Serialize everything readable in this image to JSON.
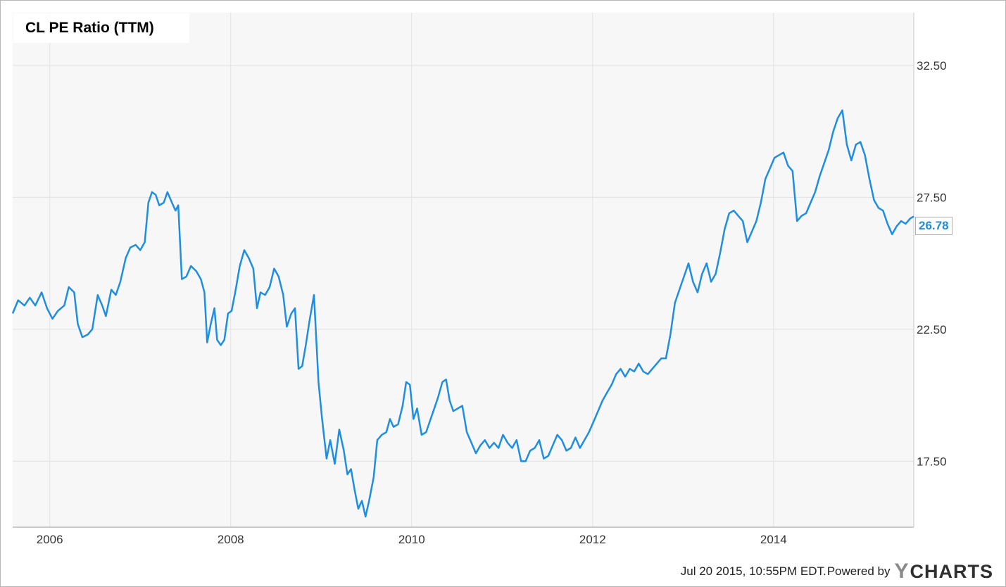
{
  "title": "CL PE Ratio (TTM)",
  "last_value_label": "26.78",
  "footer": {
    "timestamp": "Jul 20 2015, 10:55PM EDT.",
    "powered_by": "Powered by",
    "logo_y": "Y",
    "logo_rest": "CHARTS"
  },
  "colors": {
    "line": "#1f8ee0",
    "plot_background": "#f7f7f7",
    "grid": "#e2e2e2",
    "badge_text": "#1f8ee0"
  },
  "chart_data": {
    "type": "line",
    "title": "CL PE Ratio (TTM)",
    "xlabel": "",
    "ylabel": "",
    "x_range": [
      2005.59,
      2015.55
    ],
    "ylim": [
      15.0,
      34.5
    ],
    "grid": true,
    "y_axis_side": "right",
    "y_ticks": [
      "17.50",
      "22.50",
      "27.50",
      "32.50"
    ],
    "x_ticks": [
      "2006",
      "2008",
      "2010",
      "2012",
      "2014"
    ],
    "last_value": 26.78,
    "series": [
      {
        "name": "CL PE Ratio (TTM)",
        "points": [
          [
            2005.59,
            23.1
          ],
          [
            2005.65,
            23.6
          ],
          [
            2005.72,
            23.4
          ],
          [
            2005.78,
            23.7
          ],
          [
            2005.84,
            23.4
          ],
          [
            2005.91,
            23.9
          ],
          [
            2005.97,
            23.3
          ],
          [
            2006.03,
            22.9
          ],
          [
            2006.09,
            23.2
          ],
          [
            2006.16,
            23.4
          ],
          [
            2006.21,
            24.1
          ],
          [
            2006.27,
            23.9
          ],
          [
            2006.31,
            22.7
          ],
          [
            2006.36,
            22.2
          ],
          [
            2006.42,
            22.3
          ],
          [
            2006.47,
            22.5
          ],
          [
            2006.53,
            23.8
          ],
          [
            2006.58,
            23.4
          ],
          [
            2006.62,
            23.0
          ],
          [
            2006.68,
            24.0
          ],
          [
            2006.73,
            23.8
          ],
          [
            2006.78,
            24.3
          ],
          [
            2006.84,
            25.2
          ],
          [
            2006.89,
            25.6
          ],
          [
            2006.95,
            25.7
          ],
          [
            2007.0,
            25.5
          ],
          [
            2007.05,
            25.8
          ],
          [
            2007.09,
            27.3
          ],
          [
            2007.13,
            27.7
          ],
          [
            2007.17,
            27.6
          ],
          [
            2007.21,
            27.2
          ],
          [
            2007.26,
            27.3
          ],
          [
            2007.3,
            27.7
          ],
          [
            2007.35,
            27.3
          ],
          [
            2007.39,
            27.0
          ],
          [
            2007.42,
            27.2
          ],
          [
            2007.46,
            24.4
          ],
          [
            2007.51,
            24.5
          ],
          [
            2007.56,
            24.9
          ],
          [
            2007.62,
            24.7
          ],
          [
            2007.67,
            24.4
          ],
          [
            2007.71,
            23.9
          ],
          [
            2007.74,
            22.0
          ],
          [
            2007.78,
            22.7
          ],
          [
            2007.82,
            23.3
          ],
          [
            2007.85,
            22.1
          ],
          [
            2007.89,
            21.9
          ],
          [
            2007.93,
            22.1
          ],
          [
            2007.97,
            23.1
          ],
          [
            2008.01,
            23.2
          ],
          [
            2008.05,
            23.9
          ],
          [
            2008.1,
            24.9
          ],
          [
            2008.15,
            25.5
          ],
          [
            2008.2,
            25.2
          ],
          [
            2008.25,
            24.8
          ],
          [
            2008.29,
            23.3
          ],
          [
            2008.33,
            23.9
          ],
          [
            2008.38,
            23.8
          ],
          [
            2008.43,
            24.1
          ],
          [
            2008.48,
            24.8
          ],
          [
            2008.53,
            24.5
          ],
          [
            2008.58,
            23.8
          ],
          [
            2008.62,
            22.6
          ],
          [
            2008.67,
            23.1
          ],
          [
            2008.71,
            23.3
          ],
          [
            2008.75,
            21.0
          ],
          [
            2008.79,
            21.1
          ],
          [
            2008.83,
            21.9
          ],
          [
            2008.87,
            22.8
          ],
          [
            2008.92,
            23.8
          ],
          [
            2008.97,
            20.5
          ],
          [
            2009.01,
            19.1
          ],
          [
            2009.06,
            17.6
          ],
          [
            2009.1,
            18.3
          ],
          [
            2009.15,
            17.4
          ],
          [
            2009.2,
            18.7
          ],
          [
            2009.25,
            17.9
          ],
          [
            2009.29,
            17.0
          ],
          [
            2009.33,
            17.2
          ],
          [
            2009.37,
            16.4
          ],
          [
            2009.41,
            15.7
          ],
          [
            2009.45,
            16.0
          ],
          [
            2009.49,
            15.4
          ],
          [
            2009.53,
            16.0
          ],
          [
            2009.58,
            16.9
          ],
          [
            2009.62,
            18.3
          ],
          [
            2009.67,
            18.5
          ],
          [
            2009.72,
            18.6
          ],
          [
            2009.76,
            19.1
          ],
          [
            2009.8,
            18.8
          ],
          [
            2009.85,
            18.9
          ],
          [
            2009.9,
            19.6
          ],
          [
            2009.94,
            20.5
          ],
          [
            2009.98,
            20.4
          ],
          [
            2010.02,
            19.1
          ],
          [
            2010.06,
            19.5
          ],
          [
            2010.11,
            18.5
          ],
          [
            2010.16,
            18.6
          ],
          [
            2010.2,
            19.0
          ],
          [
            2010.25,
            19.5
          ],
          [
            2010.29,
            19.9
          ],
          [
            2010.34,
            20.5
          ],
          [
            2010.38,
            20.6
          ],
          [
            2010.42,
            19.8
          ],
          [
            2010.46,
            19.4
          ],
          [
            2010.51,
            19.5
          ],
          [
            2010.56,
            19.6
          ],
          [
            2010.61,
            18.6
          ],
          [
            2010.66,
            18.2
          ],
          [
            2010.71,
            17.8
          ],
          [
            2010.76,
            18.1
          ],
          [
            2010.81,
            18.3
          ],
          [
            2010.86,
            18.0
          ],
          [
            2010.91,
            18.2
          ],
          [
            2010.96,
            18.0
          ],
          [
            2011.01,
            18.5
          ],
          [
            2011.06,
            18.2
          ],
          [
            2011.11,
            18.0
          ],
          [
            2011.16,
            18.3
          ],
          [
            2011.21,
            17.5
          ],
          [
            2011.26,
            17.5
          ],
          [
            2011.31,
            17.9
          ],
          [
            2011.36,
            18.0
          ],
          [
            2011.41,
            18.3
          ],
          [
            2011.46,
            17.6
          ],
          [
            2011.51,
            17.7
          ],
          [
            2011.56,
            18.1
          ],
          [
            2011.61,
            18.5
          ],
          [
            2011.66,
            18.3
          ],
          [
            2011.71,
            17.9
          ],
          [
            2011.76,
            18.0
          ],
          [
            2011.81,
            18.4
          ],
          [
            2011.86,
            18.0
          ],
          [
            2011.91,
            18.3
          ],
          [
            2011.96,
            18.6
          ],
          [
            2012.01,
            19.0
          ],
          [
            2012.06,
            19.4
          ],
          [
            2012.11,
            19.8
          ],
          [
            2012.16,
            20.1
          ],
          [
            2012.21,
            20.4
          ],
          [
            2012.26,
            20.8
          ],
          [
            2012.31,
            21.0
          ],
          [
            2012.36,
            20.7
          ],
          [
            2012.41,
            21.0
          ],
          [
            2012.46,
            20.9
          ],
          [
            2012.51,
            21.2
          ],
          [
            2012.56,
            20.9
          ],
          [
            2012.61,
            20.8
          ],
          [
            2012.66,
            21.0
          ],
          [
            2012.71,
            21.2
          ],
          [
            2012.76,
            21.4
          ],
          [
            2012.81,
            21.4
          ],
          [
            2012.86,
            22.3
          ],
          [
            2012.91,
            23.5
          ],
          [
            2012.96,
            24.0
          ],
          [
            2013.01,
            24.5
          ],
          [
            2013.06,
            25.0
          ],
          [
            2013.11,
            24.3
          ],
          [
            2013.16,
            23.9
          ],
          [
            2013.21,
            24.6
          ],
          [
            2013.26,
            25.0
          ],
          [
            2013.31,
            24.3
          ],
          [
            2013.36,
            24.6
          ],
          [
            2013.41,
            25.4
          ],
          [
            2013.46,
            26.3
          ],
          [
            2013.51,
            26.9
          ],
          [
            2013.56,
            27.0
          ],
          [
            2013.61,
            26.8
          ],
          [
            2013.66,
            26.6
          ],
          [
            2013.71,
            25.8
          ],
          [
            2013.76,
            26.2
          ],
          [
            2013.81,
            26.6
          ],
          [
            2013.86,
            27.3
          ],
          [
            2013.91,
            28.2
          ],
          [
            2013.96,
            28.6
          ],
          [
            2014.01,
            29.0
          ],
          [
            2014.06,
            29.1
          ],
          [
            2014.11,
            29.2
          ],
          [
            2014.16,
            28.7
          ],
          [
            2014.21,
            28.5
          ],
          [
            2014.26,
            26.6
          ],
          [
            2014.31,
            26.8
          ],
          [
            2014.36,
            26.9
          ],
          [
            2014.41,
            27.3
          ],
          [
            2014.46,
            27.7
          ],
          [
            2014.51,
            28.3
          ],
          [
            2014.56,
            28.8
          ],
          [
            2014.61,
            29.3
          ],
          [
            2014.66,
            30.0
          ],
          [
            2014.71,
            30.5
          ],
          [
            2014.76,
            30.8
          ],
          [
            2014.81,
            29.5
          ],
          [
            2014.86,
            28.9
          ],
          [
            2014.91,
            29.5
          ],
          [
            2014.96,
            29.6
          ],
          [
            2015.01,
            29.1
          ],
          [
            2015.06,
            28.2
          ],
          [
            2015.11,
            27.4
          ],
          [
            2015.16,
            27.1
          ],
          [
            2015.21,
            27.0
          ],
          [
            2015.26,
            26.5
          ],
          [
            2015.31,
            26.1
          ],
          [
            2015.36,
            26.4
          ],
          [
            2015.41,
            26.6
          ],
          [
            2015.46,
            26.5
          ],
          [
            2015.51,
            26.7
          ],
          [
            2015.55,
            26.78
          ]
        ]
      }
    ]
  }
}
